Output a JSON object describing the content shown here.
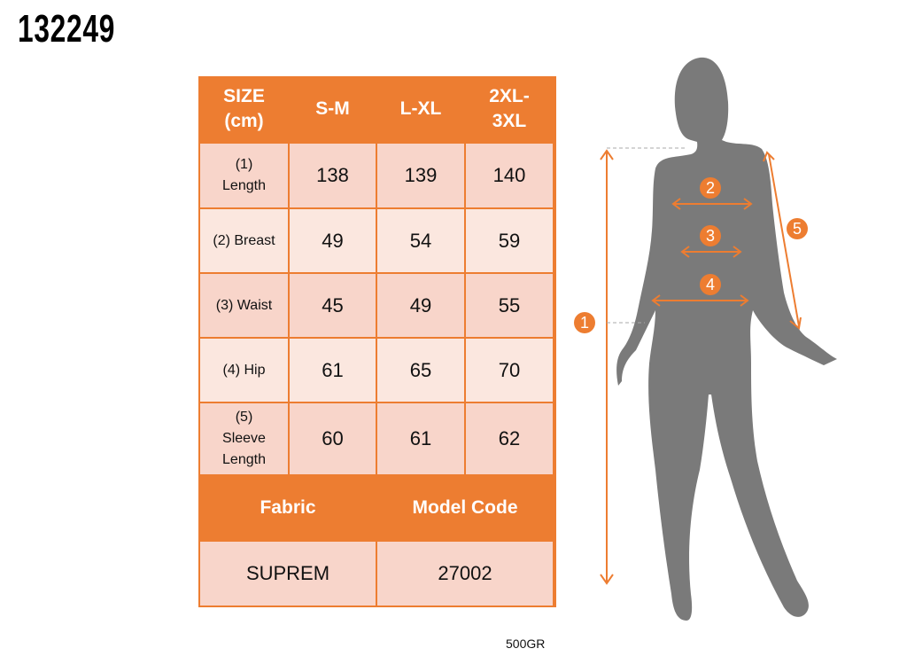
{
  "product_code": "132249",
  "table": {
    "header": [
      "SIZE (cm)",
      "S-M",
      "L-XL",
      "2XL-3XL"
    ],
    "header_lines": [
      [
        "SIZE",
        "(cm)"
      ],
      [
        "S-M"
      ],
      [
        "L-XL"
      ],
      [
        "2XL-",
        "3XL"
      ]
    ],
    "rows": [
      {
        "label_lines": [
          "(1)",
          "Length"
        ],
        "values": [
          "138",
          "139",
          "140"
        ]
      },
      {
        "label_lines": [
          "(2) Breast"
        ],
        "values": [
          "49",
          "54",
          "59"
        ]
      },
      {
        "label_lines": [
          "(3) Waist"
        ],
        "values": [
          "45",
          "49",
          "55"
        ]
      },
      {
        "label_lines": [
          "(4) Hip"
        ],
        "values": [
          "61",
          "65",
          "70"
        ]
      },
      {
        "label_lines": [
          "(5)",
          "Sleeve",
          "Length"
        ],
        "values": [
          "60",
          "61",
          "62"
        ]
      }
    ],
    "fabric_label": "Fabric",
    "model_code_label": "Model Code",
    "fabric_value": "SUPREM",
    "model_code_value": "27002"
  },
  "weight_note": "500GR",
  "figure": {
    "markers": [
      "1",
      "2",
      "3",
      "4",
      "5"
    ],
    "accent_color": "#ed7d31",
    "silhouette_color": "#7a7a7a"
  }
}
